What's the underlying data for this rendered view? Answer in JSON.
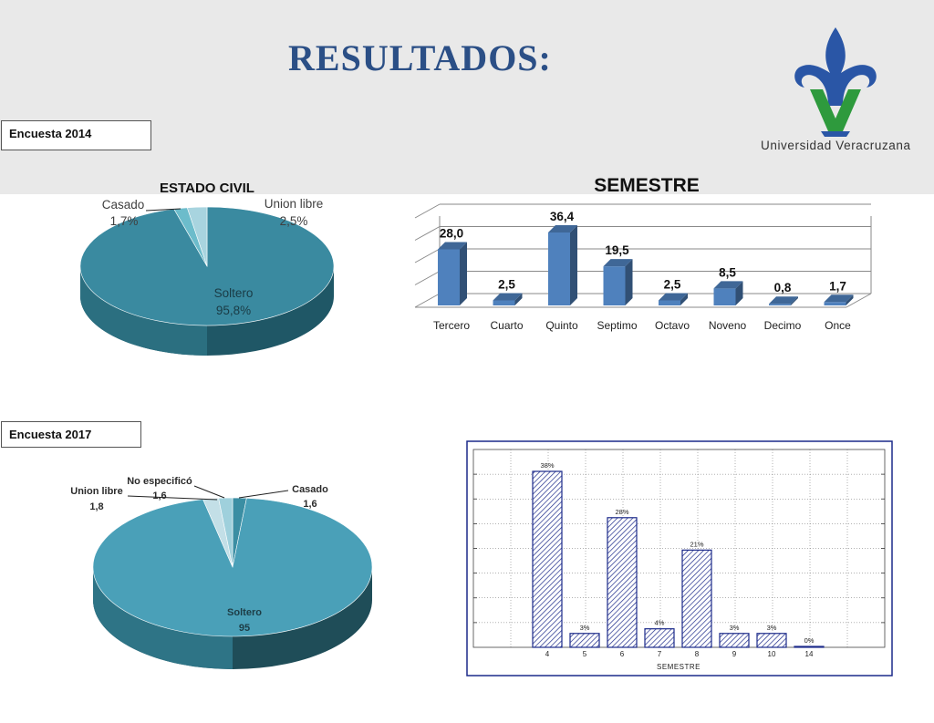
{
  "page": {
    "title": "RESULTADOS:",
    "logo_text": "Universidad Veracruzana",
    "survey_2014": "Encuesta  2014",
    "survey_2017": "Encuesta  2017",
    "colors": {
      "title": "#2b4f86",
      "logo_blue": "#2a56a6",
      "logo_green": "#2e9a3d",
      "header_band": "#e9e9e9"
    }
  },
  "chart_data": [
    {
      "id": "estado-civil-2014",
      "type": "pie",
      "title": "ESTADO CIVIL",
      "slices": [
        {
          "label": "Soltero",
          "value_text": "95,8%",
          "value": 95.8
        },
        {
          "label": "Casado",
          "value_text": "1,7%",
          "value": 1.7
        },
        {
          "label": "Union libre",
          "value_text": "2,5%",
          "value": 2.5
        }
      ],
      "colors": [
        "#3a8aa0",
        "#6cbccb",
        "#a8d4df"
      ]
    },
    {
      "id": "semestre-2014",
      "type": "bar",
      "title": "SEMESTRE",
      "categories": [
        "Tercero",
        "Cuarto",
        "Quinto",
        "Septimo",
        "Octavo",
        "Noveno",
        "Decimo",
        "Once"
      ],
      "values": [
        28.0,
        2.5,
        36.4,
        19.5,
        2.5,
        8.5,
        0.8,
        1.7
      ],
      "value_labels": [
        "28,0",
        "2,5",
        "36,4",
        "19,5",
        "2,5",
        "8,5",
        "0,8",
        "1,7"
      ],
      "ylim": [
        0,
        40
      ],
      "grid": true,
      "color": "#4f81bd"
    },
    {
      "id": "estado-civil-2017",
      "type": "pie",
      "slices": [
        {
          "label": "Soltero",
          "value_text": "95",
          "value": 95
        },
        {
          "label": "Casado",
          "value_text": "1,6",
          "value": 1.6
        },
        {
          "label": "No especificó",
          "value_text": "1,6",
          "value": 1.6
        },
        {
          "label": "Union libre",
          "value_text": "1,8",
          "value": 1.8
        }
      ],
      "colors": [
        "#4aa0b8",
        "#3b8ea3",
        "#9fd0dc",
        "#c3dfe7"
      ]
    },
    {
      "id": "semestre-2017",
      "type": "bar",
      "xlabel": "SEMESTRE",
      "categories": [
        "4",
        "5",
        "6",
        "7",
        "8",
        "9",
        "10",
        "14"
      ],
      "values": [
        38,
        3,
        28,
        4,
        21,
        3,
        3,
        0
      ],
      "value_labels": [
        "38%",
        "3%",
        "28%",
        "4%",
        "21%",
        "3%",
        "3%",
        "0%"
      ],
      "ylim": [
        0,
        40
      ],
      "grid": true,
      "color": "#1c2a8a"
    }
  ]
}
